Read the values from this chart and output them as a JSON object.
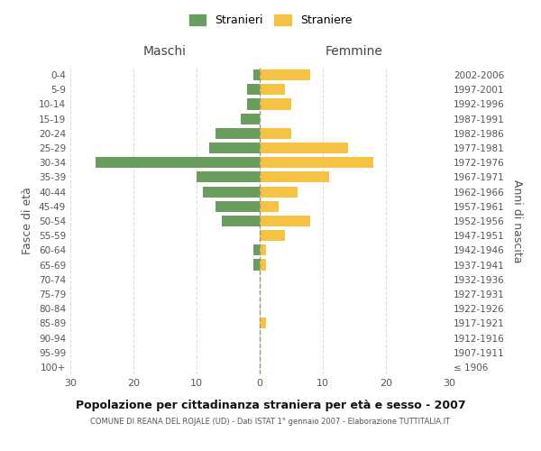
{
  "age_groups": [
    "100+",
    "95-99",
    "90-94",
    "85-89",
    "80-84",
    "75-79",
    "70-74",
    "65-69",
    "60-64",
    "55-59",
    "50-54",
    "45-49",
    "40-44",
    "35-39",
    "30-34",
    "25-29",
    "20-24",
    "15-19",
    "10-14",
    "5-9",
    "0-4"
  ],
  "birth_years": [
    "≤ 1906",
    "1907-1911",
    "1912-1916",
    "1917-1921",
    "1922-1926",
    "1927-1931",
    "1932-1936",
    "1937-1941",
    "1942-1946",
    "1947-1951",
    "1952-1956",
    "1957-1961",
    "1962-1966",
    "1967-1971",
    "1972-1976",
    "1977-1981",
    "1982-1986",
    "1987-1991",
    "1992-1996",
    "1997-2001",
    "2002-2006"
  ],
  "maschi": [
    0,
    0,
    0,
    0,
    0,
    0,
    0,
    1,
    1,
    0,
    6,
    7,
    9,
    10,
    26,
    8,
    7,
    3,
    2,
    2,
    1
  ],
  "femmine": [
    0,
    0,
    0,
    1,
    0,
    0,
    0,
    1,
    1,
    4,
    8,
    3,
    6,
    11,
    18,
    14,
    5,
    0,
    5,
    4,
    8
  ],
  "color_maschi": "#6a9e5e",
  "color_femmine": "#f5c243",
  "title": "Popolazione per cittadinanza straniera per età e sesso - 2007",
  "subtitle": "COMUNE DI REANA DEL ROJALE (UD) - Dati ISTAT 1° gennaio 2007 - Elaborazione TUTTITALIA.IT",
  "ylabel_left": "Fasce di età",
  "ylabel_right": "Anni di nascita",
  "xlabel_left": "Maschi",
  "xlabel_right": "Femmine",
  "legend_stranieri": "Stranieri",
  "legend_straniere": "Straniere",
  "xlim": 30,
  "background_color": "#ffffff",
  "grid_color": "#dddddd"
}
